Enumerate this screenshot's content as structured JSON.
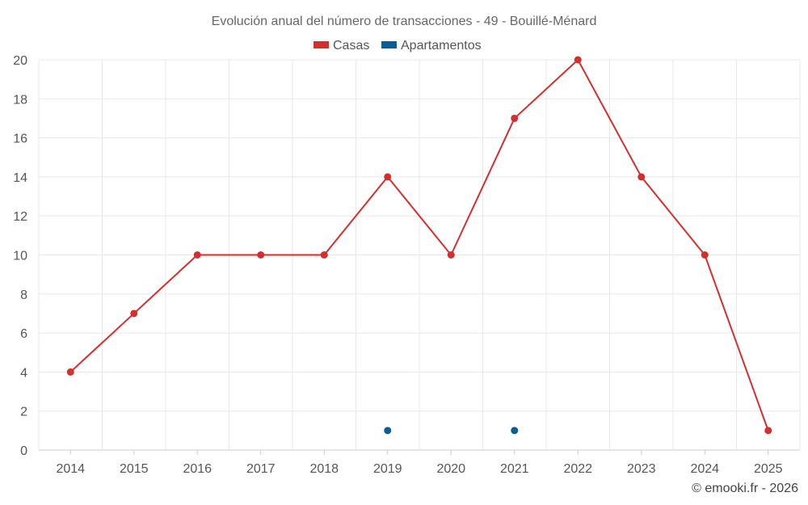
{
  "chart_data": {
    "type": "line",
    "title": "Evolución anual del número de transacciones - 49 - Bouillé-Ménard",
    "categories": [
      "2014",
      "2015",
      "2016",
      "2017",
      "2018",
      "2019",
      "2020",
      "2021",
      "2022",
      "2023",
      "2024",
      "2025"
    ],
    "ylim": [
      0,
      20
    ],
    "yticks": [
      "0",
      "2",
      "4",
      "6",
      "8",
      "10",
      "12",
      "14",
      "16",
      "18",
      "20"
    ],
    "grid": true,
    "legend": "top-center",
    "series": [
      {
        "name": "Casas",
        "color": "#d32f2f",
        "values": [
          4,
          7,
          10,
          10,
          10,
          14,
          10,
          17,
          20,
          14,
          10,
          1
        ]
      },
      {
        "name": "Apartamentos",
        "color": "#0b5e94",
        "values": [
          null,
          null,
          null,
          null,
          null,
          1,
          null,
          1,
          null,
          null,
          null,
          null
        ]
      }
    ]
  },
  "credit": "© emooki.fr - 2026"
}
